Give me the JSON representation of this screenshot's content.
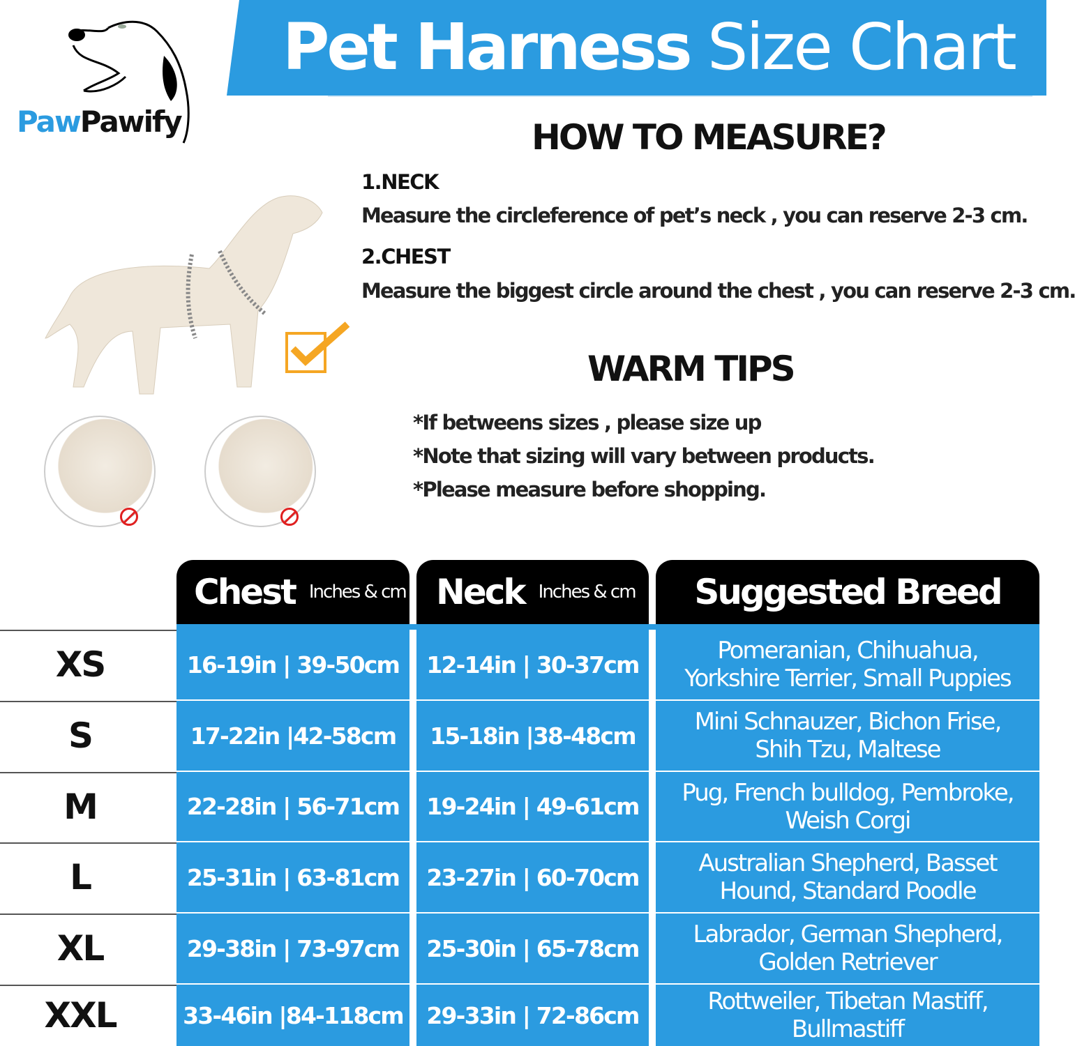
{
  "brand": {
    "part1": "Paw",
    "part2": "Pawify"
  },
  "title": {
    "bold": "Pet Harness",
    "light": "Size Chart"
  },
  "how_to": {
    "heading": "HOW TO MEASURE?",
    "steps": [
      {
        "label": "1.NECK",
        "text": "Measure the circleference of pet’s neck , you can reserve 2-3 cm."
      },
      {
        "label": "2.CHEST",
        "text": "Measure the biggest circle around the chest , you can reserve 2-3 cm."
      }
    ]
  },
  "tips": {
    "heading": "WARM TIPS",
    "items": [
      "*If betweens sizes , please size up",
      "*Note that sizing will vary between products.",
      "*Please measure before shopping."
    ]
  },
  "colors": {
    "accent": "#2b9be0",
    "header": "#000000",
    "wrong": "#e02020",
    "check": "#f5a623"
  },
  "table": {
    "headers": {
      "chest": "Chest",
      "chest_unit": "Inches & cm",
      "neck": "Neck",
      "neck_unit": "Inches & cm",
      "breed": "Suggested Breed"
    },
    "rows": [
      {
        "size": "XS",
        "chest": "16-19in | 39-50cm",
        "neck": "12-14in | 30-37cm",
        "breed1": "Pomeranian,  Chihuahua,",
        "breed2": "Yorkshire Terrier,  Small Puppies"
      },
      {
        "size": "S",
        "chest": "17-22in |42-58cm",
        "neck": "15-18in |38-48cm",
        "breed1": "Mini Schnauzer,  Bichon Frise,",
        "breed2": "Shih Tzu,  Maltese"
      },
      {
        "size": "M",
        "chest": "22-28in | 56-71cm",
        "neck": "19-24in | 49-61cm",
        "breed1": "Pug,  French bulldog,  Pembroke,",
        "breed2": "Weish Corgi"
      },
      {
        "size": "L",
        "chest": "25-31in | 63-81cm",
        "neck": "23-27in | 60-70cm",
        "breed1": "Australian Shepherd,  Basset",
        "breed2": "Hound,  Standard Poodle"
      },
      {
        "size": "XL",
        "chest": "29-38in | 73-97cm",
        "neck": "25-30in | 65-78cm",
        "breed1": "Labrador,  German Shepherd,",
        "breed2": "Golden Retriever"
      },
      {
        "size": "XXL",
        "chest": "33-46in |84-118cm",
        "neck": "29-33in | 72-86cm",
        "breed1": "Rottweiler,  Tibetan Mastiff,",
        "breed2": "Bullmastiff"
      }
    ]
  }
}
